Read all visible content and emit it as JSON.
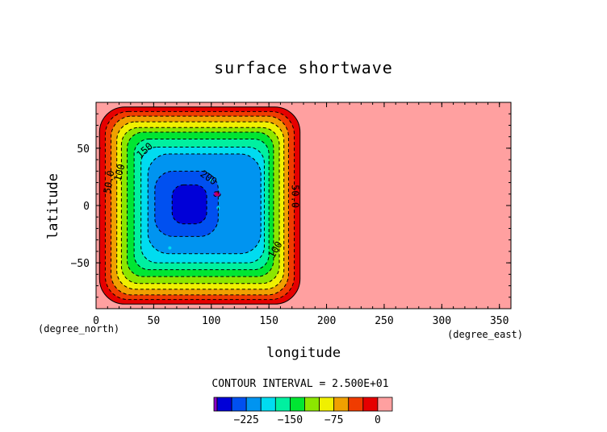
{
  "chart_data": {
    "type": "heatmap",
    "title": "surface shortwave",
    "xlabel": "longitude",
    "ylabel": "latitude",
    "x_unit": "(degree_east)",
    "y_unit": "(degree_north)",
    "xlim": [
      0,
      360
    ],
    "ylim": [
      -90,
      90
    ],
    "x_ticks": [
      0,
      50,
      100,
      150,
      200,
      250,
      300,
      350
    ],
    "y_ticks": [
      50,
      0,
      -50
    ],
    "x_tick_labels": [
      "0",
      "50",
      "100",
      "150",
      "200",
      "250",
      "300",
      "350"
    ],
    "y_tick_labels": [
      "50",
      "0",
      "−50"
    ],
    "grid": false,
    "contour_interval_text": "CONTOUR INTERVAL = 2.500E+01",
    "contour_labels": [
      "50.0",
      "100",
      "150",
      "200",
      "50.0",
      "100"
    ],
    "colorbar": {
      "levels": [
        -275,
        -250,
        -225,
        -200,
        -175,
        -150,
        -125,
        -100,
        -75,
        -50,
        -25,
        0
      ],
      "colors": [
        "#8c00c8",
        "#0000d8",
        "#0050f0",
        "#0094f0",
        "#00dcf0",
        "#00f0a0",
        "#00e632",
        "#8ce600",
        "#f0f000",
        "#f0a000",
        "#f03c00",
        "#e60000",
        "#ffa0a0"
      ],
      "tick_labels": [
        "−225",
        "−150",
        "−75",
        "0"
      ],
      "tick_values": [
        -225,
        -150,
        -75,
        0
      ]
    }
  }
}
